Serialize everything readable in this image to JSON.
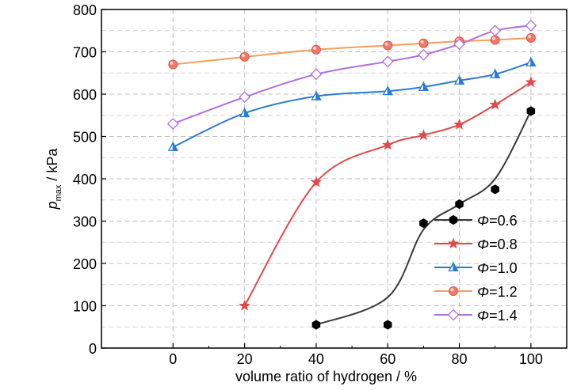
{
  "chart_data": {
    "type": "line",
    "xlabel": "volume ratio of hydrogen / %",
    "ylabel": {
      "main": "p",
      "sub": "max",
      "unit": " / kPa"
    },
    "x_ticks": [
      0,
      20,
      40,
      60,
      80,
      100
    ],
    "y_ticks": [
      0,
      100,
      200,
      300,
      400,
      500,
      600,
      700,
      800
    ],
    "xlim": [
      -20,
      110
    ],
    "ylim": [
      0,
      800
    ],
    "grid": true,
    "legend_position": "bottom-right",
    "legend_prefix": "Φ",
    "series": [
      {
        "name": "=0.6",
        "marker": "hexagon",
        "color": "#3a3a3a",
        "marker_fill": "#000000",
        "x": [
          40,
          60,
          70,
          80,
          90,
          100
        ],
        "y": [
          55,
          55,
          295,
          340,
          375,
          560
        ],
        "curve_x": [
          40,
          60,
          70,
          80,
          90,
          100
        ],
        "curve_y": [
          55,
          120,
          280,
          340,
          400,
          560
        ]
      },
      {
        "name": "=0.8",
        "marker": "star",
        "color": "#e04a4a",
        "marker_fill": "#e04a4a",
        "x": [
          20,
          40,
          60,
          70,
          80,
          90,
          100
        ],
        "y": [
          100,
          392,
          480,
          503,
          528,
          575,
          628
        ]
      },
      {
        "name": "=1.0",
        "marker": "half-triangle",
        "color": "#2f7ad0",
        "marker_fill": "#2f7ad0",
        "x": [
          0,
          20,
          40,
          60,
          70,
          80,
          90,
          100
        ],
        "y": [
          475,
          555,
          595,
          607,
          617,
          632,
          647,
          675
        ]
      },
      {
        "name": "=1.2",
        "marker": "circle",
        "color": "#f0a060",
        "marker_fill": "#f07a6a",
        "x": [
          0,
          20,
          40,
          60,
          70,
          80,
          90,
          100
        ],
        "y": [
          670,
          688,
          705,
          715,
          720,
          725,
          728,
          733
        ]
      },
      {
        "name": "=1.4",
        "marker": "diamond",
        "color": "#b070e0",
        "marker_fill": "#ffffff",
        "x": [
          0,
          20,
          40,
          60,
          70,
          80,
          90,
          100
        ],
        "y": [
          530,
          593,
          647,
          677,
          693,
          718,
          750,
          762
        ]
      }
    ]
  }
}
